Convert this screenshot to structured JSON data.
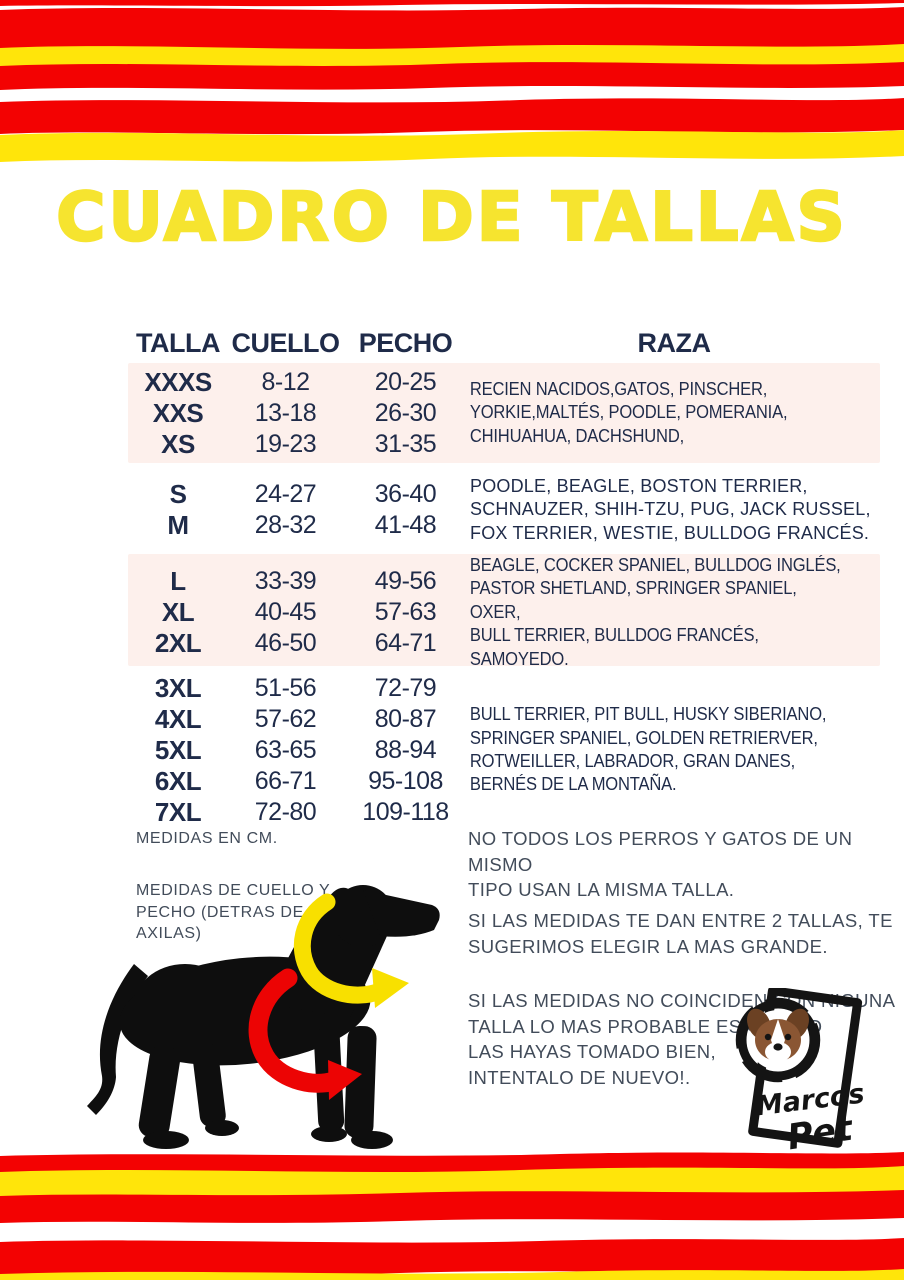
{
  "title": "CUADRO DE TALLAS",
  "colors": {
    "stripe_red": "#f30202",
    "stripe_yellow": "#ffe50a",
    "title_yellow": "#f6e42f",
    "table_navy": "#1f2b49",
    "note_gray": "#424c5a",
    "row_pink": "#fdf0ec"
  },
  "table": {
    "headers": [
      "TALLA",
      "CUELLO",
      "PECHO",
      "RAZA"
    ],
    "groups": [
      {
        "highlight": true,
        "condensed": true,
        "rows": [
          [
            "XXXS",
            "8-12",
            "20-25"
          ],
          [
            "XXS",
            "13-18",
            "26-30"
          ],
          [
            "XS",
            "19-23",
            "31-35"
          ]
        ],
        "raza": "RECIEN NACIDOS,GATOS, PINSCHER,\nYORKIE,MALTÉS, POODLE, POMERANIA,\nCHIHUAHUA, DACHSHUND,"
      },
      {
        "highlight": false,
        "condensed": false,
        "rows": [
          [
            "S",
            "24-27",
            "36-40"
          ],
          [
            "M",
            "28-32",
            "41-48"
          ]
        ],
        "raza": "POODLE, BEAGLE, BOSTON TERRIER,\nSCHNAUZER, SHIH-TZU, PUG, JACK RUSSEL,\nFOX TERRIER, WESTIE, BULLDOG FRANCÉS."
      },
      {
        "highlight": true,
        "condensed": true,
        "rows": [
          [
            "L",
            "33-39",
            "49-56"
          ],
          [
            "XL",
            "40-45",
            "57-63"
          ],
          [
            "2XL",
            "46-50",
            "64-71"
          ]
        ],
        "raza": "BEAGLE, COCKER SPANIEL, BULLDOG INGLÉS,\nPASTOR SHETLAND, SPRINGER SPANIEL, OXER,\nBULL TERRIER, BULLDOG FRANCÉS, SAMOYEDO."
      },
      {
        "highlight": false,
        "condensed": true,
        "rows": [
          [
            "3XL",
            "51-56",
            "72-79"
          ],
          [
            "4XL",
            "57-62",
            "80-87"
          ],
          [
            "5XL",
            "63-65",
            "88-94"
          ],
          [
            "6XL",
            "66-71",
            "95-108"
          ],
          [
            "7XL",
            "72-80",
            "109-118"
          ]
        ],
        "raza": "BULL TERRIER, PIT BULL, HUSKY SIBERIANO,\nSPRINGER SPANIEL, GOLDEN RETRIERVER,\nROTWEILLER, LABRADOR, GRAN DANES,\nBERNÉS DE LA MONTAÑA."
      }
    ]
  },
  "notes": {
    "units": "MEDIDAS EN CM.",
    "method": "MEDIDAS DE CUELLO Y\nPECHO (DETRAS DE LAS\nAXILAS)"
  },
  "tips": [
    "NO TODOS LOS PERROS Y GATOS DE UN MISMO\nTIPO USAN LA MISMA TALLA.",
    "SI LAS MEDIDAS TE DAN ENTRE 2 TALLAS, TE\nSUGERIMOS ELEGIR LA MAS GRANDE.",
    "SI LAS MEDIDAS NO COINCIDEN CON NIGUNA\nTALLA LO MAS PROBABLE ES QUE NO\nLAS HAYAS TOMADO BIEN,\nINTENTALO DE NUEVO!."
  ],
  "logo": {
    "line1": "Marcos",
    "line2": "Pet"
  },
  "figure": {
    "neck_arrow": "medida de cuello (flecha amarilla)",
    "chest_arrow": "medida de pecho (flecha roja)"
  }
}
